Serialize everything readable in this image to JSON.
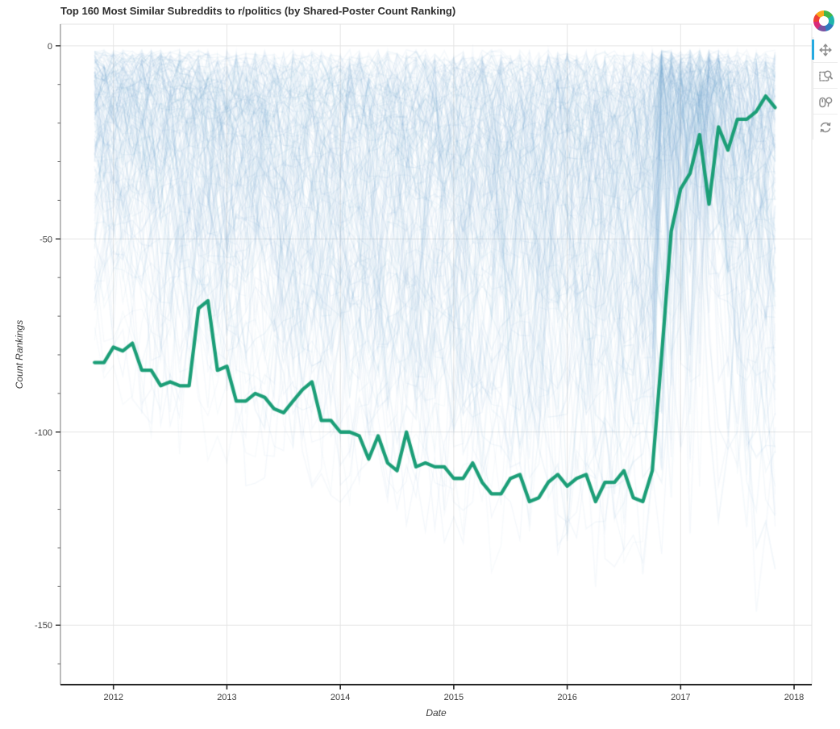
{
  "title": "Top 160 Most Similar Subreddits to r/politics (by Shared-Poster Count Ranking)",
  "toolbar": {
    "accent_color": "#26aae1",
    "logo": "bokeh-logo",
    "tools": [
      {
        "name": "pan",
        "icon": "pan-icon",
        "active": true
      },
      {
        "name": "box-zoom",
        "icon": "box-zoom-icon",
        "active": false
      },
      {
        "name": "wheel-zoom",
        "icon": "wheel-zoom-icon",
        "active": false
      },
      {
        "name": "reset",
        "icon": "reset-icon",
        "active": false
      }
    ]
  },
  "chart_data": {
    "type": "line",
    "title": "Top 160 Most Similar Subreddits to r/politics (by Shared-Poster Count Ranking)",
    "xlabel": "Date",
    "ylabel": "Count Rankings",
    "x_ticks": [
      2012,
      2013,
      2014,
      2015,
      2016,
      2017,
      2018
    ],
    "x_tick_labels": [
      "2012",
      "2013",
      "2014",
      "2015",
      "2016",
      "2017",
      "2018"
    ],
    "y_ticks": [
      0,
      -50,
      -100,
      -150
    ],
    "y_tick_labels": [
      "0",
      "-50",
      "-100",
      "-150"
    ],
    "y_minor_step": 10,
    "xlim": [
      2011.533,
      2018.156
    ],
    "ylim": [
      -165.4,
      5.6
    ],
    "grid": true,
    "grid_color": "#e5e5e5",
    "series": [
      {
        "name": "highlighted-subreddit-count-ranking",
        "color": "#1b9e77",
        "line_width": 4.3,
        "x": [
          2011.833,
          2011.917,
          2012.0,
          2012.083,
          2012.167,
          2012.25,
          2012.333,
          2012.417,
          2012.5,
          2012.583,
          2012.667,
          2012.75,
          2012.833,
          2012.917,
          2013.0,
          2013.083,
          2013.167,
          2013.25,
          2013.333,
          2013.417,
          2013.5,
          2013.583,
          2013.667,
          2013.75,
          2013.833,
          2013.917,
          2014.0,
          2014.083,
          2014.167,
          2014.25,
          2014.333,
          2014.417,
          2014.5,
          2014.583,
          2014.667,
          2014.75,
          2014.833,
          2014.917,
          2015.0,
          2015.083,
          2015.167,
          2015.25,
          2015.333,
          2015.417,
          2015.5,
          2015.583,
          2015.667,
          2015.75,
          2015.833,
          2015.917,
          2016.0,
          2016.083,
          2016.167,
          2016.25,
          2016.333,
          2016.417,
          2016.5,
          2016.583,
          2016.667,
          2016.75,
          2016.833,
          2016.917,
          2017.0,
          2017.083,
          2017.167,
          2017.25,
          2017.333,
          2017.417,
          2017.5,
          2017.583,
          2017.667,
          2017.75,
          2017.833
        ],
        "y": [
          -82,
          -82,
          -78,
          -79,
          -77,
          -84,
          -84,
          -88,
          -87,
          -88,
          -88,
          -68,
          -66,
          -84,
          -83,
          -92,
          -92,
          -90,
          -91,
          -94,
          -95,
          -92,
          -89,
          -87,
          -97,
          -97,
          -100,
          -100,
          -101,
          -107,
          -101,
          -108,
          -110,
          -100,
          -109,
          -108,
          -109,
          -109,
          -112,
          -112,
          -108,
          -113,
          -116,
          -116,
          -112,
          -111,
          -118,
          -117,
          -113,
          -111,
          -114,
          -112,
          -111,
          -118,
          -113,
          -113,
          -110,
          -117,
          -118,
          -110,
          -80,
          -48,
          -37,
          -33,
          -23,
          -41,
          -21,
          -27,
          -19,
          -19,
          -17,
          -13,
          -16
        ]
      }
    ],
    "background": {
      "description": "159 other subreddit ranking traces drawn as translucent light-blue noisy lines",
      "count": 159,
      "color_rgb": [
        88,
        148,
        197
      ],
      "opacity": 0.06,
      "y_top": -1,
      "envelope_x": [
        2011.833,
        2012.2,
        2013,
        2014,
        2015,
        2016,
        2016.6,
        2017,
        2017.45,
        2017.833
      ],
      "envelope_bottom": [
        -88,
        -100,
        -116,
        -128,
        -136,
        -146,
        -150,
        -154,
        -157,
        -154
      ],
      "surge_window": [
        2016.79,
        2017.3
      ]
    }
  }
}
